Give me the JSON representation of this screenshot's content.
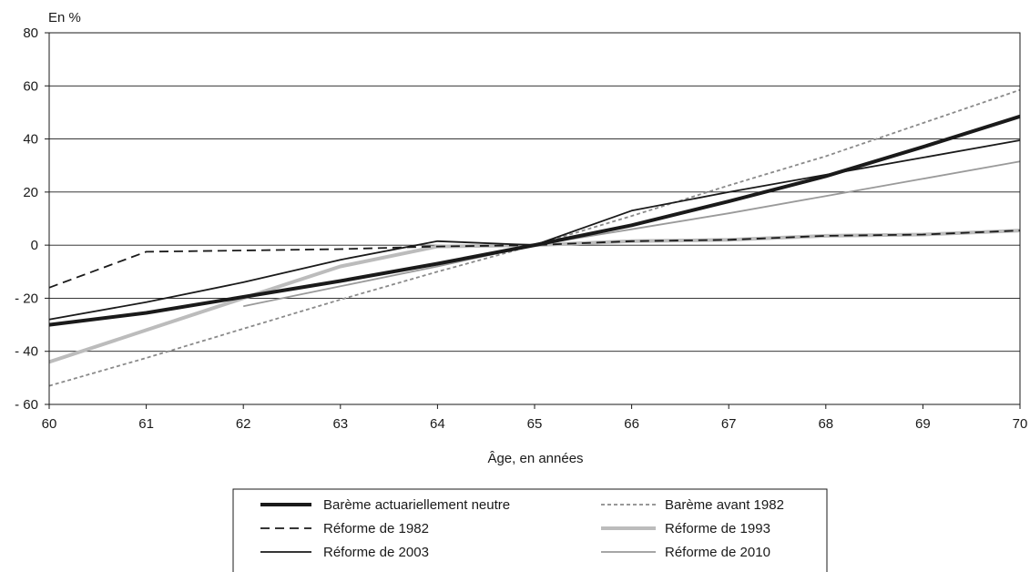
{
  "chart_data": {
    "type": "line",
    "title": "",
    "unit_label": "En %",
    "xlabel": "Âge, en années",
    "ylabel": "",
    "xlim": [
      60,
      70
    ],
    "ylim": [
      -60,
      80
    ],
    "x_ticks": [
      60,
      61,
      62,
      63,
      64,
      65,
      66,
      67,
      68,
      69,
      70
    ],
    "y_ticks": [
      -60,
      -40,
      -20,
      0,
      20,
      40,
      60,
      80
    ],
    "y_tick_labels": [
      "- 60",
      "- 40",
      "- 20",
      "0",
      "20",
      "40",
      "60",
      "80"
    ],
    "grid": "horizontal",
    "legend_position": "bottom",
    "series": [
      {
        "name": "Barème actuariellement neutre",
        "color": "#1a1a1a",
        "style": "solid-thick",
        "points": [
          [
            60,
            -30
          ],
          [
            61,
            -25.5
          ],
          [
            62,
            -19.5
          ],
          [
            63,
            -13.5
          ],
          [
            64,
            -7
          ],
          [
            65,
            0
          ],
          [
            66,
            7.5
          ],
          [
            67,
            16.5
          ],
          [
            68,
            26
          ],
          [
            69,
            37
          ],
          [
            70,
            48.5
          ]
        ]
      },
      {
        "name": "Barème avant 1982",
        "color": "#8a8a8a",
        "style": "dotted",
        "points": [
          [
            60,
            -53
          ],
          [
            61,
            -42.5
          ],
          [
            62,
            -31.5
          ],
          [
            63,
            -20.5
          ],
          [
            64,
            -10
          ],
          [
            65,
            0
          ],
          [
            66,
            11
          ],
          [
            67,
            22.5
          ],
          [
            68,
            33.5
          ],
          [
            69,
            46
          ],
          [
            70,
            58.5
          ]
        ]
      },
      {
        "name": "Réforme de 1982",
        "color": "#1a1a1a",
        "style": "dashed",
        "points": [
          [
            60,
            -16
          ],
          [
            61,
            -2.5
          ],
          [
            62,
            -2
          ],
          [
            63,
            -1.5
          ],
          [
            64,
            -0.5
          ],
          [
            65,
            0
          ],
          [
            66,
            1.5
          ],
          [
            67,
            2
          ],
          [
            68,
            3.5
          ],
          [
            69,
            4
          ],
          [
            70,
            5.5
          ]
        ]
      },
      {
        "name": "Réforme de 1993",
        "color": "#bcbcbc",
        "style": "solid-thick",
        "points": [
          [
            60,
            -44
          ],
          [
            61,
            -32
          ],
          [
            62,
            -20
          ],
          [
            63,
            -8
          ],
          [
            64,
            -0.5
          ],
          [
            65,
            0
          ],
          [
            66,
            1.5
          ],
          [
            67,
            2
          ],
          [
            68,
            3.5
          ],
          [
            69,
            4
          ],
          [
            70,
            5.5
          ]
        ]
      },
      {
        "name": "Réforme de 2003",
        "color": "#1a1a1a",
        "style": "solid-thin",
        "points": [
          [
            60,
            -28
          ],
          [
            61,
            -21.5
          ],
          [
            62,
            -14
          ],
          [
            63,
            -5.5
          ],
          [
            64,
            1.5
          ],
          [
            65,
            0
          ],
          [
            66,
            13
          ],
          [
            67,
            20
          ],
          [
            68,
            26.5
          ],
          [
            69,
            33
          ],
          [
            70,
            39.5
          ]
        ]
      },
      {
        "name": "Réforme de 2010",
        "color": "#9a9a9a",
        "style": "solid-thin",
        "points": [
          [
            62,
            -23
          ],
          [
            63,
            -15.5
          ],
          [
            64,
            -8
          ],
          [
            65,
            0
          ],
          [
            66,
            6
          ],
          [
            67,
            12
          ],
          [
            68,
            18.5
          ],
          [
            69,
            25
          ],
          [
            70,
            31.5
          ]
        ]
      }
    ]
  }
}
